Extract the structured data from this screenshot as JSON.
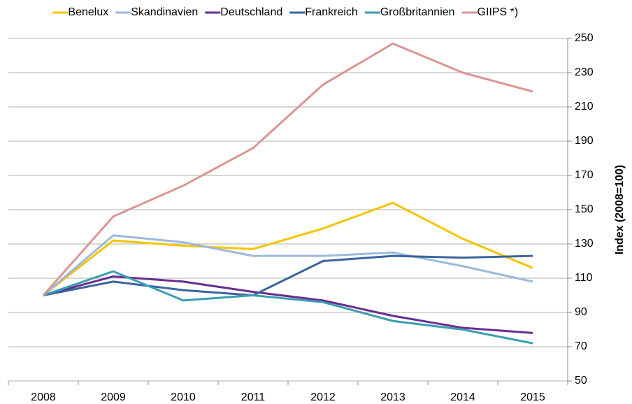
{
  "chart_data": {
    "type": "line",
    "categories": [
      "2008",
      "2009",
      "2010",
      "2011",
      "2012",
      "2013",
      "2014",
      "2015"
    ],
    "series": [
      {
        "name": "Benelux",
        "color": "#f5c400",
        "values": [
          100,
          132,
          129,
          127,
          139,
          154,
          133,
          116
        ]
      },
      {
        "name": "Skandinavien",
        "color": "#9db9dc",
        "values": [
          100,
          135,
          131,
          123,
          123,
          125,
          117,
          108
        ]
      },
      {
        "name": "Deutschland",
        "color": "#6a2d91",
        "values": [
          100,
          111,
          108,
          102,
          97,
          88,
          81,
          78
        ]
      },
      {
        "name": "Frankreich",
        "color": "#3a64a0",
        "values": [
          100,
          108,
          103,
          100,
          120,
          123,
          122,
          123
        ]
      },
      {
        "name": "Großbritannien",
        "color": "#3b9eb2",
        "values": [
          100,
          114,
          97,
          100,
          96,
          85,
          80,
          72
        ]
      },
      {
        "name": "GIIPS *)",
        "color": "#d99694",
        "values": [
          100,
          146,
          164,
          186,
          223,
          247,
          230,
          219
        ]
      }
    ],
    "y_axis_label": "Index (2008=100)",
    "ylim": [
      50,
      250
    ],
    "yticks": [
      50,
      70,
      90,
      110,
      130,
      150,
      170,
      190,
      210,
      230,
      250
    ],
    "grid": true,
    "legend": "top"
  }
}
